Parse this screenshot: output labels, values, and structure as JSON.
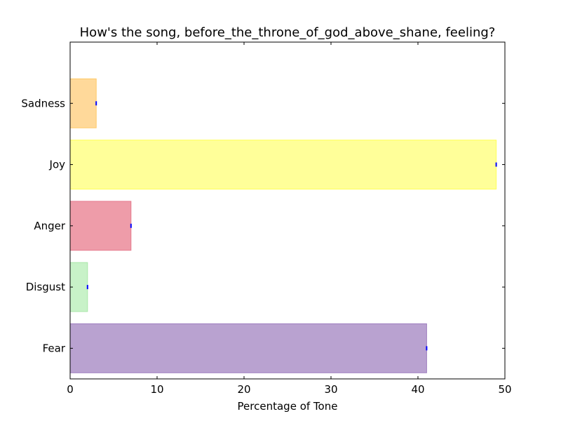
{
  "chart_data": {
    "type": "bar",
    "orientation": "horizontal",
    "title": "How's the song, before_the_throne_of_god_above_shane, feeling?",
    "xlabel": "Percentage of Tone",
    "ylabel": "",
    "xlim": [
      0,
      50
    ],
    "xticks": [
      0,
      10,
      20,
      30,
      40,
      50
    ],
    "categories": [
      "Fear",
      "Disgust",
      "Anger",
      "Joy",
      "Sadness"
    ],
    "values": [
      41,
      2,
      7,
      49,
      3
    ],
    "colors": [
      "#b9a2d0",
      "#c8f2c8",
      "#ee9ca9",
      "#ffff99",
      "#ffd99a"
    ],
    "edge_colors": [
      "#9f7fbf",
      "#a8e6a8",
      "#e57a8d",
      "#ffff55",
      "#ffc966"
    ],
    "grid": false,
    "legend": "none"
  }
}
